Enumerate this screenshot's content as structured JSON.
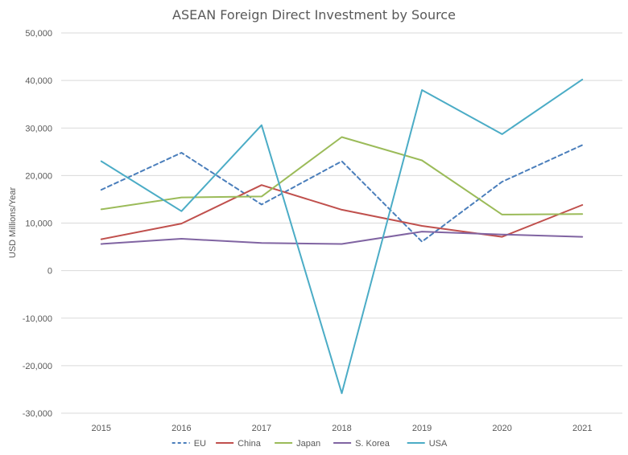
{
  "chart_data": {
    "type": "line",
    "title": "ASEAN Foreign Direct Investment by Source",
    "xlabel": "",
    "ylabel": "USD Millions/Year",
    "x": [
      "2015",
      "2016",
      "2017",
      "2018",
      "2019",
      "2020",
      "2021"
    ],
    "ylim": [
      -30000,
      50000
    ],
    "yticks": [
      50000,
      40000,
      30000,
      20000,
      10000,
      0,
      -10000,
      -20000,
      -30000
    ],
    "ytick_labels": [
      "50,000",
      "40,000",
      "30,000",
      "20,000",
      "10,000",
      "0",
      "-10,000",
      "-20,000",
      "-30,000"
    ],
    "grid": true,
    "legend": "bottom",
    "series": [
      {
        "name": "EU",
        "color": "#4a7ebb",
        "dashed": true,
        "values": [
          17000,
          24800,
          13900,
          23000,
          6100,
          18700,
          26400
        ]
      },
      {
        "name": "China",
        "color": "#c0504d",
        "dashed": false,
        "values": [
          6600,
          9900,
          18000,
          12800,
          9400,
          7100,
          13800
        ]
      },
      {
        "name": "Japan",
        "color": "#9bbb59",
        "dashed": false,
        "values": [
          12900,
          15400,
          15600,
          28100,
          23200,
          11800,
          11900
        ]
      },
      {
        "name": "S. Korea",
        "color": "#8064a2",
        "dashed": false,
        "values": [
          5600,
          6700,
          5800,
          5600,
          8200,
          7600,
          7100
        ]
      },
      {
        "name": "USA",
        "color": "#4bacc6",
        "dashed": false,
        "values": [
          23000,
          12500,
          30600,
          -25800,
          38000,
          28700,
          40200
        ]
      }
    ]
  }
}
